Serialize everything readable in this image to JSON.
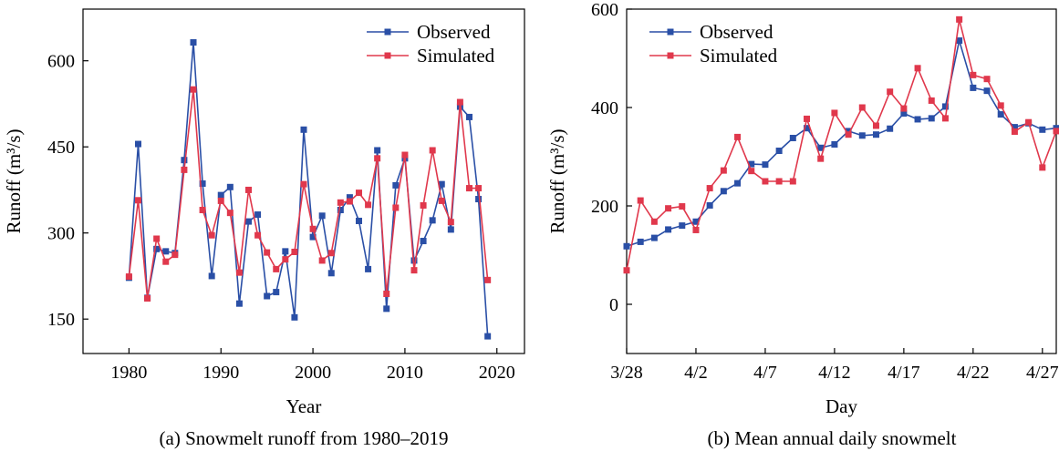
{
  "colors": {
    "observed": "#2a4fa6",
    "simulated": "#e0384c"
  },
  "chart_data": [
    {
      "type": "line",
      "caption": "(a) Snowmelt runoff from 1980–2019",
      "xlabel": "Year",
      "ylabel": "Runoff (m³/s)",
      "xlim": [
        1975,
        2023
      ],
      "ylim": [
        90,
        690
      ],
      "xticks": [
        1980,
        1990,
        2000,
        2010,
        2020
      ],
      "yticks": [
        150,
        300,
        450,
        600
      ],
      "legend_position": "top-right",
      "x": [
        1980,
        1981,
        1982,
        1983,
        1984,
        1985,
        1986,
        1987,
        1988,
        1989,
        1990,
        1991,
        1992,
        1993,
        1994,
        1995,
        1996,
        1997,
        1998,
        1999,
        2000,
        2001,
        2002,
        2003,
        2004,
        2005,
        2006,
        2007,
        2008,
        2009,
        2010,
        2011,
        2012,
        2013,
        2014,
        2015,
        2016,
        2017,
        2018,
        2019
      ],
      "series": [
        {
          "name": "Observed",
          "color_key": "observed",
          "values": [
            222,
            455,
            187,
            272,
            268,
            265,
            427,
            632,
            386,
            225,
            366,
            380,
            177,
            320,
            332,
            190,
            197,
            268,
            153,
            480,
            293,
            330,
            230,
            340,
            362,
            321,
            237,
            444,
            168,
            383,
            430,
            252,
            286,
            322,
            385,
            306,
            520,
            502,
            359,
            120
          ]
        },
        {
          "name": "Simulated",
          "color_key": "simulated",
          "values": [
            224,
            357,
            186,
            290,
            250,
            262,
            410,
            550,
            340,
            296,
            356,
            335,
            231,
            375,
            296,
            266,
            237,
            254,
            267,
            385,
            307,
            252,
            265,
            353,
            355,
            370,
            349,
            430,
            194,
            344,
            436,
            235,
            348,
            444,
            356,
            319,
            528,
            378,
            378,
            218
          ]
        }
      ]
    },
    {
      "type": "line",
      "caption": "(b) Mean annual daily snowmelt",
      "xlabel": "Day",
      "ylabel": "Runoff (m³/s)",
      "xlim": [
        0,
        31
      ],
      "ylim": [
        -100,
        600
      ],
      "xticks": [
        0,
        5,
        10,
        15,
        20,
        25,
        30
      ],
      "xtick_labels": [
        "3/28",
        "4/2",
        "4/7",
        "4/12",
        "4/17",
        "4/22",
        "4/27"
      ],
      "yticks": [
        0,
        200,
        400,
        600
      ],
      "legend_position": "top-left",
      "x": [
        0,
        1,
        2,
        3,
        4,
        5,
        6,
        7,
        8,
        9,
        10,
        11,
        12,
        13,
        14,
        15,
        16,
        17,
        18,
        19,
        20,
        21,
        22,
        23,
        24,
        25,
        26,
        27,
        28,
        29,
        30,
        31
      ],
      "series": [
        {
          "name": "Observed",
          "color_key": "observed",
          "values": [
            118,
            127,
            135,
            152,
            160,
            168,
            201,
            230,
            246,
            285,
            284,
            312,
            338,
            358,
            318,
            325,
            352,
            343,
            345,
            357,
            388,
            376,
            378,
            402,
            536,
            440,
            434,
            386,
            360,
            368,
            355,
            358
          ]
        },
        {
          "name": "Simulated",
          "color_key": "simulated",
          "values": [
            69,
            211,
            168,
            195,
            199,
            151,
            236,
            272,
            340,
            271,
            250,
            250,
            250,
            377,
            296,
            389,
            345,
            400,
            363,
            432,
            398,
            480,
            414,
            378,
            579,
            466,
            458,
            404,
            351,
            370,
            278,
            352
          ]
        }
      ]
    }
  ]
}
